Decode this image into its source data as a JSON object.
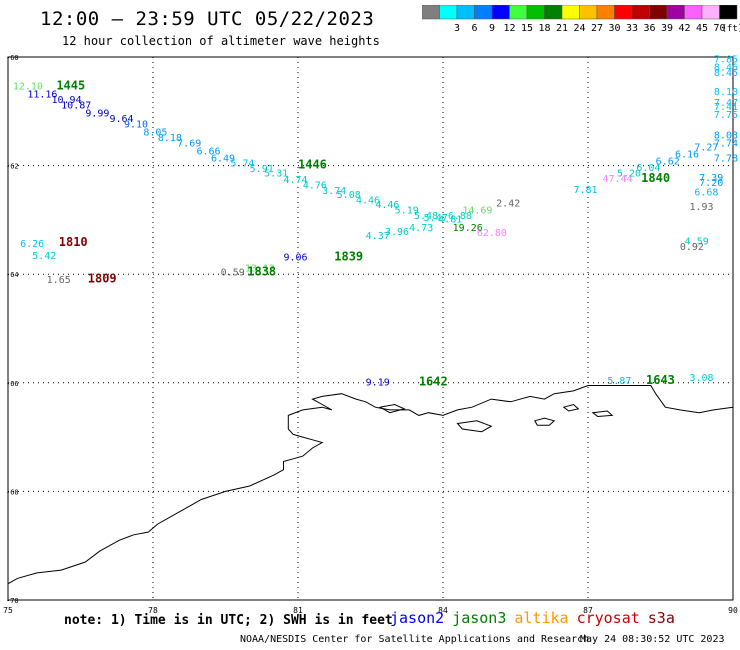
{
  "header": {
    "title": "12:00 – 23:59 UTC 05/22/2023",
    "subtitle": "12 hour collection of altimeter wave heights"
  },
  "legend": {
    "unit": "(ft)",
    "bins": [
      {
        "label": "",
        "color": "#7f7f7f"
      },
      {
        "label": "3",
        "color": "#00ffff"
      },
      {
        "label": "6",
        "color": "#00bfff"
      },
      {
        "label": "9",
        "color": "#0080ff"
      },
      {
        "label": "12",
        "color": "#0000ff"
      },
      {
        "label": "15",
        "color": "#40ff40"
      },
      {
        "label": "18",
        "color": "#00c000"
      },
      {
        "label": "21",
        "color": "#008000"
      },
      {
        "label": "24",
        "color": "#ffff00"
      },
      {
        "label": "27",
        "color": "#ffc000"
      },
      {
        "label": "30",
        "color": "#ff8000"
      },
      {
        "label": "33",
        "color": "#ff0000"
      },
      {
        "label": "36",
        "color": "#c00000"
      },
      {
        "label": "39",
        "color": "#800000"
      },
      {
        "label": "42",
        "color": "#a000a0"
      },
      {
        "label": "45",
        "color": "#ff60ff"
      },
      {
        "label": "70",
        "color": "#ffb0ff"
      },
      {
        "label": "",
        "color": "#000000"
      }
    ]
  },
  "axes": {
    "x_ticks": [
      "75",
      "78",
      "81",
      "84",
      "87",
      "90"
    ],
    "y_ticks": [
      "-60",
      "-62",
      "-64",
      "-66",
      "-68",
      "-70"
    ]
  },
  "observations": [
    {
      "text": "12.10",
      "lon": 75.1,
      "lat": -60.6,
      "color": "#66dd66"
    },
    {
      "text": "11.16",
      "lon": 75.4,
      "lat": -60.75,
      "color": "#0000cc"
    },
    {
      "text": "10.94",
      "lon": 75.9,
      "lat": -60.85,
      "color": "#0000cc"
    },
    {
      "text": "10.87",
      "lon": 76.1,
      "lat": -60.95,
      "color": "#0000cc"
    },
    {
      "text": "9.99",
      "lon": 76.6,
      "lat": -61.1,
      "color": "#0000cc"
    },
    {
      "text": "9.64",
      "lon": 77.1,
      "lat": -61.2,
      "color": "#0000cc"
    },
    {
      "text": "9.10",
      "lon": 77.4,
      "lat": -61.3,
      "color": "#0066ff"
    },
    {
      "text": "8.05",
      "lon": 77.8,
      "lat": -61.45,
      "color": "#0099ff"
    },
    {
      "text": "8.18",
      "lon": 78.1,
      "lat": -61.55,
      "color": "#0099ff"
    },
    {
      "text": "7.69",
      "lon": 78.5,
      "lat": -61.65,
      "color": "#0099ff"
    },
    {
      "text": "6.66",
      "lon": 78.9,
      "lat": -61.8,
      "color": "#0099ff"
    },
    {
      "text": "6.49",
      "lon": 79.2,
      "lat": -61.92,
      "color": "#0099ff"
    },
    {
      "text": "5.74",
      "lon": 79.6,
      "lat": -62.02,
      "color": "#00bfff"
    },
    {
      "text": "5.91",
      "lon": 80.0,
      "lat": -62.12,
      "color": "#00cccc"
    },
    {
      "text": "5.31",
      "lon": 80.3,
      "lat": -62.2,
      "color": "#00cccc"
    },
    {
      "text": "4.74",
      "lon": 80.7,
      "lat": -62.32,
      "color": "#00cccc"
    },
    {
      "text": "4.76",
      "lon": 81.1,
      "lat": -62.42,
      "color": "#00cccc"
    },
    {
      "text": "3.74",
      "lon": 81.5,
      "lat": -62.52,
      "color": "#00cccc"
    },
    {
      "text": "5.08",
      "lon": 81.8,
      "lat": -62.6,
      "color": "#00cccc"
    },
    {
      "text": "4.46",
      "lon": 82.2,
      "lat": -62.7,
      "color": "#00cccc"
    },
    {
      "text": "4.46",
      "lon": 82.6,
      "lat": -62.78,
      "color": "#00cccc"
    },
    {
      "text": "5.19",
      "lon": 83.0,
      "lat": -62.88,
      "color": "#00cccc"
    },
    {
      "text": "5.48",
      "lon": 83.4,
      "lat": -62.98,
      "color": "#00cccc"
    },
    {
      "text": "5.47",
      "lon": 83.6,
      "lat": -63.02,
      "color": "#00cccc"
    },
    {
      "text": "4.81",
      "lon": 83.9,
      "lat": -63.05,
      "color": "#00cccc"
    },
    {
      "text": "6.88",
      "lon": 84.1,
      "lat": -62.98,
      "color": "#00cccc"
    },
    {
      "text": "14.69",
      "lon": 84.4,
      "lat": -62.88,
      "color": "#66dd66"
    },
    {
      "text": "2.42",
      "lon": 85.1,
      "lat": -62.75,
      "color": "#666666"
    },
    {
      "text": "4.37",
      "lon": 82.4,
      "lat": -63.35,
      "color": "#00cccc"
    },
    {
      "text": "3.96",
      "lon": 82.8,
      "lat": -63.28,
      "color": "#00cccc"
    },
    {
      "text": "4.73",
      "lon": 83.3,
      "lat": -63.2,
      "color": "#00cccc"
    },
    {
      "text": "19.26",
      "lon": 84.2,
      "lat": -63.2,
      "color": "#008000"
    },
    {
      "text": "62.80",
      "lon": 84.7,
      "lat": -63.3,
      "color": "#ff80ff"
    },
    {
      "text": "6.26",
      "lon": 75.25,
      "lat": -63.5,
      "color": "#00bfff"
    },
    {
      "text": "5.42",
      "lon": 75.5,
      "lat": -63.72,
      "color": "#00cccc"
    },
    {
      "text": "1.65",
      "lon": 75.8,
      "lat": -64.16,
      "color": "#666666"
    },
    {
      "text": "0.59",
      "lon": 79.4,
      "lat": -64.02,
      "color": "#666666"
    },
    {
      "text": "13.12",
      "lon": 79.9,
      "lat": -63.95,
      "color": "#66dd66"
    },
    {
      "text": "9.06",
      "lon": 80.7,
      "lat": -63.75,
      "color": "#0000cc"
    },
    {
      "text": "7.81",
      "lon": 86.7,
      "lat": -62.5,
      "color": "#00bfff"
    },
    {
      "text": "47.44",
      "lon": 87.3,
      "lat": -62.3,
      "color": "#ff80ff"
    },
    {
      "text": "5.20",
      "lon": 87.6,
      "lat": -62.2,
      "color": "#00cccc"
    },
    {
      "text": "6.04",
      "lon": 88.0,
      "lat": -62.1,
      "color": "#00cccc"
    },
    {
      "text": "6.62",
      "lon": 88.4,
      "lat": -61.98,
      "color": "#0099ff"
    },
    {
      "text": "6.16",
      "lon": 88.8,
      "lat": -61.85,
      "color": "#0099ff"
    },
    {
      "text": "7.27",
      "lon": 89.2,
      "lat": -61.72,
      "color": "#0099ff"
    },
    {
      "text": "7.74",
      "lon": 89.6,
      "lat": -61.65,
      "color": "#0099ff"
    },
    {
      "text": "7.78",
      "lon": 89.8,
      "lat": -61.92,
      "color": "#0099ff"
    },
    {
      "text": "8.03",
      "lon": 90.0,
      "lat": -61.5,
      "color": "#0099ff"
    },
    {
      "text": "7.39",
      "lon": 89.3,
      "lat": -62.28,
      "color": "#0099ff"
    },
    {
      "text": "7.20",
      "lon": 89.3,
      "lat": -62.38,
      "color": "#0099ff"
    },
    {
      "text": "6.68",
      "lon": 89.2,
      "lat": -62.55,
      "color": "#00bfff"
    },
    {
      "text": "1.93",
      "lon": 89.1,
      "lat": -62.82,
      "color": "#666666"
    },
    {
      "text": "4.59",
      "lon": 89.0,
      "lat": -63.45,
      "color": "#00cccc"
    },
    {
      "text": "0.92",
      "lon": 88.9,
      "lat": -63.55,
      "color": "#666666"
    },
    {
      "text": "7.85",
      "lon": 90.0,
      "lat": -60.1,
      "color": "#00bfff"
    },
    {
      "text": "8.46",
      "lon": 90.0,
      "lat": -60.25,
      "color": "#00bfff"
    },
    {
      "text": "8.45",
      "lon": 90.0,
      "lat": -60.35,
      "color": "#00bfff"
    },
    {
      "text": "8.10",
      "lon": 90.0,
      "lat": -60.7,
      "color": "#00bfff"
    },
    {
      "text": "7.47",
      "lon": 90.0,
      "lat": -60.9,
      "color": "#00bfff"
    },
    {
      "text": "7.41",
      "lon": 89.95,
      "lat": -60.98,
      "color": "#00bfff"
    },
    {
      "text": "7.75",
      "lon": 90.0,
      "lat": -61.12,
      "color": "#00bfff"
    },
    {
      "text": "9.19",
      "lon": 82.4,
      "lat": -66.05,
      "color": "#0000cc"
    },
    {
      "text": "5.87",
      "lon": 87.4,
      "lat": -66.02,
      "color": "#00bfff"
    },
    {
      "text": "3.08",
      "lon": 89.1,
      "lat": -65.97,
      "color": "#00cccc"
    }
  ],
  "passes": [
    {
      "text": "1445",
      "lon": 76.0,
      "lat": -60.6,
      "color": "#008000",
      "bold": true
    },
    {
      "text": "1446",
      "lon": 81.0,
      "lat": -62.05,
      "color": "#008000",
      "bold": true
    },
    {
      "text": "1810",
      "lon": 76.05,
      "lat": -63.48,
      "color": "#800000",
      "bold": true
    },
    {
      "text": "1809",
      "lon": 76.65,
      "lat": -64.15,
      "color": "#800000",
      "bold": true
    },
    {
      "text": "1838",
      "lon": 79.95,
      "lat": -64.02,
      "color": "#008000",
      "bold": true
    },
    {
      "text": "1839",
      "lon": 81.75,
      "lat": -63.75,
      "color": "#008000",
      "bold": true
    },
    {
      "text": "1840",
      "lon": 88.1,
      "lat": -62.3,
      "color": "#008000",
      "bold": true
    },
    {
      "text": "1642",
      "lon": 83.5,
      "lat": -66.05,
      "color": "#008000",
      "bold": true
    },
    {
      "text": "1643",
      "lon": 88.2,
      "lat": -66.02,
      "color": "#008000",
      "bold": true
    }
  ],
  "coastline": [
    [
      75.0,
      -69.7
    ],
    [
      75.2,
      -69.6
    ],
    [
      75.6,
      -69.5
    ],
    [
      76.1,
      -69.45
    ],
    [
      76.6,
      -69.3
    ],
    [
      76.9,
      -69.1
    ],
    [
      77.1,
      -69.0
    ],
    [
      77.3,
      -68.9
    ],
    [
      77.6,
      -68.8
    ],
    [
      77.9,
      -68.75
    ],
    [
      78.1,
      -68.6
    ],
    [
      78.4,
      -68.45
    ],
    [
      78.7,
      -68.3
    ],
    [
      79.0,
      -68.15
    ],
    [
      79.5,
      -68.0
    ],
    [
      80.0,
      -67.9
    ],
    [
      80.5,
      -67.7
    ],
    [
      80.7,
      -67.6
    ],
    [
      80.7,
      -67.45
    ],
    [
      80.9,
      -67.4
    ],
    [
      81.1,
      -67.35
    ],
    [
      81.3,
      -67.2
    ],
    [
      81.5,
      -67.1
    ],
    [
      81.3,
      -67.05
    ],
    [
      81.1,
      -67.0
    ],
    [
      80.9,
      -66.95
    ],
    [
      80.8,
      -66.85
    ],
    [
      80.8,
      -66.6
    ],
    [
      81.1,
      -66.5
    ],
    [
      81.5,
      -66.45
    ],
    [
      81.7,
      -66.5
    ],
    [
      81.5,
      -66.4
    ],
    [
      81.3,
      -66.3
    ],
    [
      81.5,
      -66.25
    ],
    [
      81.9,
      -66.2
    ],
    [
      82.2,
      -66.3
    ],
    [
      82.4,
      -66.35
    ],
    [
      82.6,
      -66.45
    ],
    [
      82.9,
      -66.5
    ],
    [
      83.3,
      -66.5
    ],
    [
      83.5,
      -66.6
    ],
    [
      83.7,
      -66.55
    ],
    [
      84.0,
      -66.6
    ],
    [
      84.3,
      -66.5
    ],
    [
      84.6,
      -66.45
    ],
    [
      85.0,
      -66.3
    ],
    [
      85.4,
      -66.35
    ],
    [
      85.8,
      -66.25
    ],
    [
      86.1,
      -66.3
    ],
    [
      86.3,
      -66.2
    ],
    [
      86.7,
      -66.15
    ],
    [
      87.0,
      -66.05
    ],
    [
      87.3,
      -66.05
    ],
    [
      87.6,
      -66.05
    ],
    [
      88.0,
      -66.05
    ],
    [
      88.3,
      -66.05
    ],
    [
      88.4,
      -66.2
    ],
    [
      88.6,
      -66.45
    ],
    [
      88.9,
      -66.5
    ],
    [
      89.3,
      -66.55
    ],
    [
      89.6,
      -66.5
    ],
    [
      90.0,
      -66.45
    ]
  ],
  "islands": [
    [
      [
        84.3,
        -66.75
      ],
      [
        84.7,
        -66.7
      ],
      [
        85.0,
        -66.8
      ],
      [
        84.8,
        -66.9
      ],
      [
        84.4,
        -66.85
      ],
      [
        84.3,
        -66.75
      ]
    ],
    [
      [
        85.9,
        -66.7
      ],
      [
        86.1,
        -66.65
      ],
      [
        86.3,
        -66.7
      ],
      [
        86.2,
        -66.78
      ],
      [
        85.95,
        -66.78
      ],
      [
        85.9,
        -66.7
      ]
    ],
    [
      [
        86.5,
        -66.45
      ],
      [
        86.7,
        -66.4
      ],
      [
        86.8,
        -66.48
      ],
      [
        86.6,
        -66.52
      ],
      [
        86.5,
        -66.45
      ]
    ],
    [
      [
        87.1,
        -66.55
      ],
      [
        87.4,
        -66.52
      ],
      [
        87.5,
        -66.6
      ],
      [
        87.2,
        -66.62
      ],
      [
        87.1,
        -66.55
      ]
    ],
    [
      [
        82.7,
        -66.45
      ],
      [
        83.0,
        -66.4
      ],
      [
        83.2,
        -66.48
      ],
      [
        82.9,
        -66.55
      ],
      [
        82.7,
        -66.45
      ]
    ]
  ],
  "footer": {
    "note": "note:  1) Time is in UTC;  2) SWH is in feet",
    "satellites": [
      {
        "name": "jason2",
        "color": "#0000ff"
      },
      {
        "name": "jason3",
        "color": "#008000"
      },
      {
        "name": "altika",
        "color": "#ff9900"
      },
      {
        "name": "cryosat",
        "color": "#cc0000"
      },
      {
        "name": "s3a",
        "color": "#880000"
      }
    ],
    "credit": "NOAA/NESDIS Center for Satellite Applications and Research",
    "timestamp": "May 24 08:30:52 UTC 2023"
  }
}
